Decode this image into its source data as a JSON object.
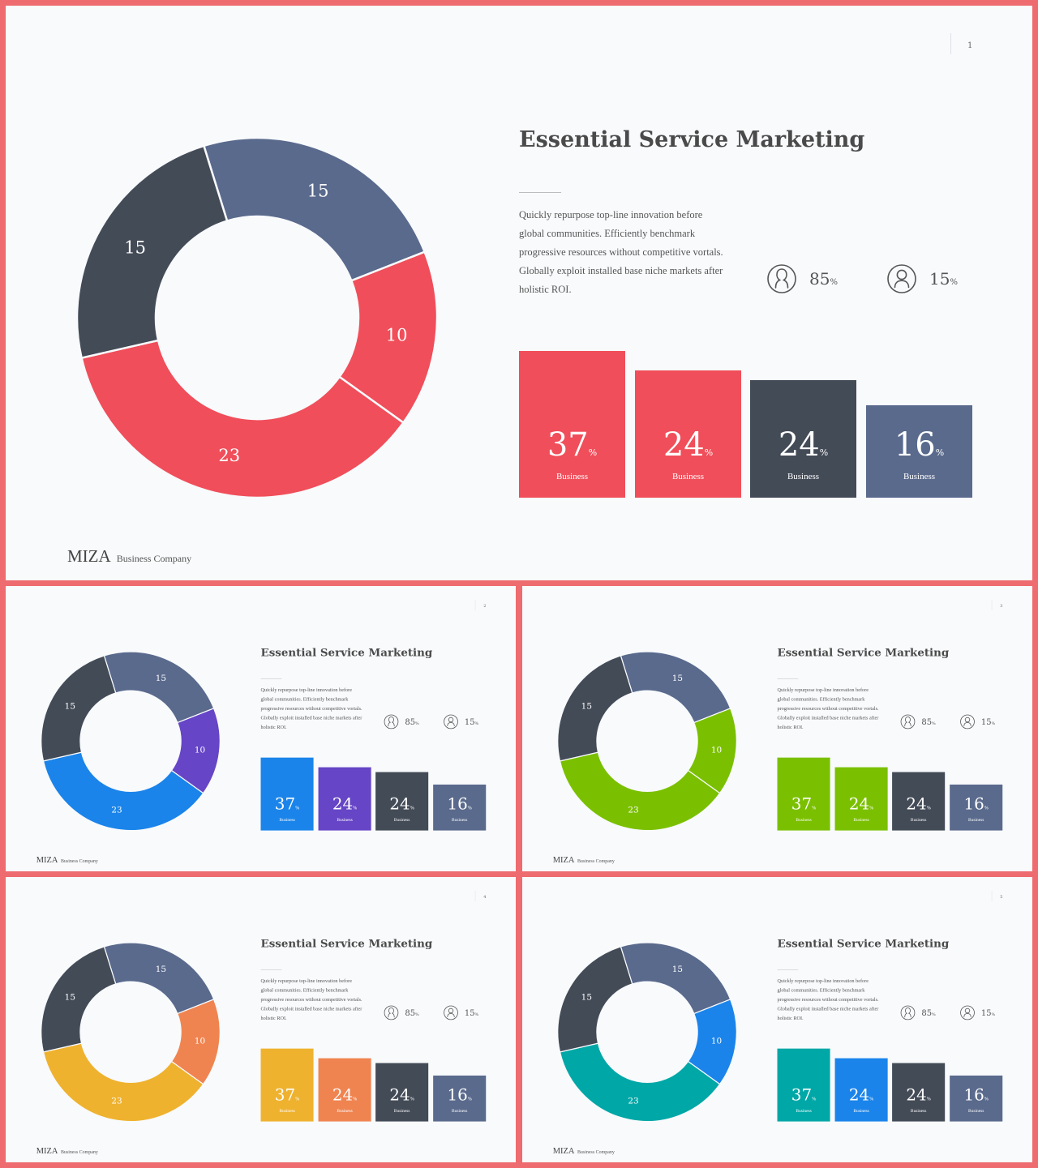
{
  "slides": [
    {
      "page_number": "1",
      "theme": {
        "primary": "#F04E5A",
        "secondary": "#F04E5A",
        "dark": "#434B57",
        "slate": "#5A6A8D"
      }
    },
    {
      "page_number": "2",
      "theme": {
        "primary": "#1A84EA",
        "secondary": "#6645C6",
        "dark": "#434B57",
        "slate": "#5A6A8D"
      }
    },
    {
      "page_number": "3",
      "theme": {
        "primary": "#7AC000",
        "secondary": "#7AC000",
        "dark": "#434B57",
        "slate": "#5A6A8D"
      }
    },
    {
      "page_number": "4",
      "theme": {
        "primary": "#EFB22F",
        "secondary": "#F08451",
        "dark": "#434B57",
        "slate": "#5A6A8D"
      }
    },
    {
      "page_number": "5",
      "theme": {
        "primary": "#00A7A7",
        "secondary": "#1A84EA",
        "dark": "#434B57",
        "slate": "#5A6A8D"
      }
    }
  ],
  "content": {
    "title": "Essential Service Marketing",
    "body": "Quickly repurpose top-line innovation before global communities. Efficiently benchmark progressive resources without competitive vortals. Globally exploit installed base niche markets after holistic ROI.",
    "stats": [
      {
        "icon": "female-user-icon",
        "value": "85",
        "unit": "%"
      },
      {
        "icon": "male-user-icon",
        "value": "15",
        "unit": "%"
      }
    ],
    "bars": [
      {
        "value": "37",
        "unit": "%",
        "caption": "Business",
        "fraction": 1.0,
        "color_role": "primary"
      },
      {
        "value": "24",
        "unit": "%",
        "caption": "Business",
        "fraction": 0.87,
        "color_role": "secondary"
      },
      {
        "value": "24",
        "unit": "%",
        "caption": "Business",
        "fraction": 0.8,
        "color_role": "dark"
      },
      {
        "value": "16",
        "unit": "%",
        "caption": "Business",
        "fraction": 0.63,
        "color_role": "slate"
      }
    ],
    "donut": [
      {
        "label": "15",
        "value": 15,
        "color_role": "slate"
      },
      {
        "label": "10",
        "value": 10,
        "color_role": "secondary"
      },
      {
        "label": "23",
        "value": 23,
        "color_role": "primary"
      },
      {
        "label": "15",
        "value": 15,
        "color_role": "dark"
      }
    ],
    "brand_main": "MIZA",
    "brand_sub": "Business Company"
  }
}
